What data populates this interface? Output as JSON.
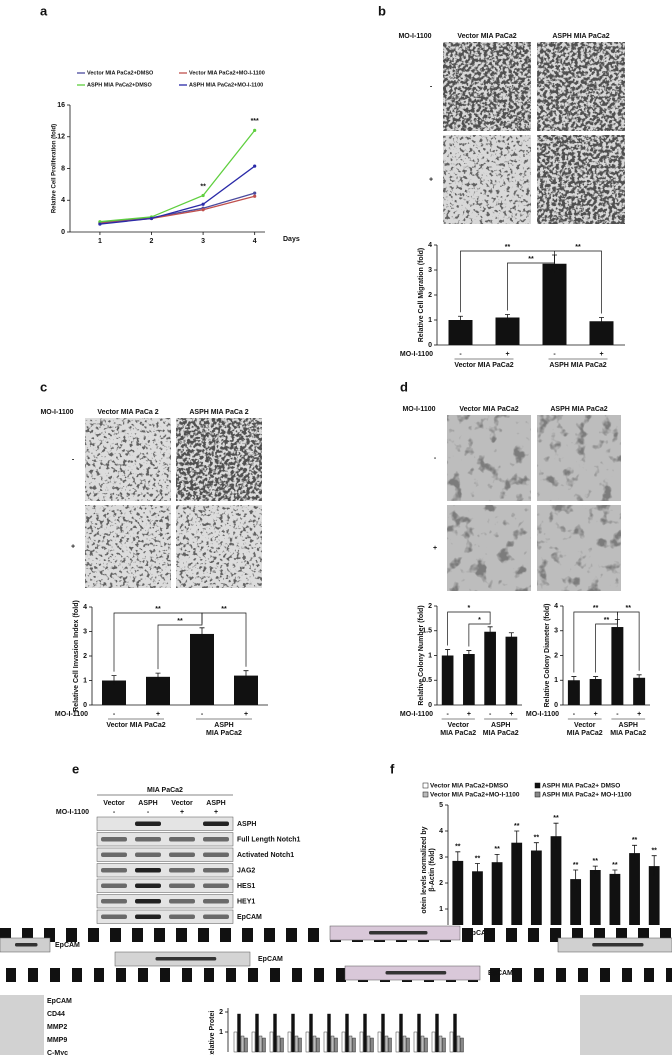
{
  "panel_labels": [
    "a",
    "b",
    "c",
    "d",
    "e",
    "f"
  ],
  "chart_data": [
    {
      "type": "line",
      "ylabel": "Relative Cell Proliferation (fold)",
      "xlabel": "Days",
      "x": [
        1,
        2,
        3,
        4
      ],
      "xlim": [
        0.42,
        4.2
      ],
      "xticks": [
        1,
        2,
        3,
        4
      ],
      "ylim": [
        0,
        16
      ],
      "yticks": [
        0,
        4,
        8,
        12,
        16
      ],
      "series": [
        {
          "name": "Vector MIA PaCa2+DMSO",
          "color": "#4b4b9e",
          "values": [
            1.2,
            1.8,
            3.0,
            4.9
          ]
        },
        {
          "name": "Vector MIA PaCa2+MO-I-1100",
          "color": "#c0504d",
          "values": [
            1.1,
            1.7,
            2.8,
            4.5
          ]
        },
        {
          "name": "ASPH MIA PaCa2+DMSO",
          "color": "#5fcf3f",
          "values": [
            1.3,
            1.9,
            4.6,
            12.8
          ]
        },
        {
          "name": "ASPH MIA PaCa2+MO-I-1100",
          "color": "#2a2aa8",
          "values": [
            1.0,
            1.7,
            3.5,
            8.3
          ]
        }
      ],
      "annotations": [
        "**",
        "***"
      ]
    },
    {
      "type": "bar",
      "ylabel": "Relative Cell Migration (fold)",
      "treatment_label": "MO-I-1100",
      "categories": [
        "-",
        "+",
        "-",
        "+"
      ],
      "groups": [
        [
          "Vector MIA PaCa2"
        ],
        [
          "ASPH MIA PaCa2"
        ]
      ],
      "values": [
        1.0,
        1.1,
        3.25,
        0.95
      ],
      "errors": [
        0.15,
        0.12,
        0.35,
        0.15
      ],
      "color": "#111111",
      "ylim": [
        0,
        4
      ],
      "yticks": [
        0,
        1,
        2,
        3,
        4
      ],
      "annotations": [
        "**",
        "**",
        "**"
      ]
    },
    {
      "type": "bar",
      "ylabel": "Relative Cell Invasion Index (fold)",
      "treatment_label": "MO-I-1100",
      "categories": [
        "-",
        "+",
        "-",
        "+"
      ],
      "groups": [
        [
          "Vector MIA PaCa2"
        ],
        [
          "ASPH",
          "MIA PaCa2"
        ]
      ],
      "values": [
        1.0,
        1.15,
        2.9,
        1.2
      ],
      "errors": [
        0.2,
        0.15,
        0.25,
        0.2
      ],
      "color": "#111111",
      "ylim": [
        0,
        4
      ],
      "yticks": [
        0,
        1,
        2,
        3,
        4
      ],
      "annotations": [
        "**",
        "**",
        "**"
      ]
    },
    {
      "type": "bar",
      "ylabel": "Relative Colony Number (fold)",
      "treatment_label": "MO-I-1100",
      "categories": [
        "-",
        "+",
        "-",
        "+"
      ],
      "groups": [
        [
          "Vector",
          "MIA PaCa2"
        ],
        [
          "ASPH",
          "MIA PaCa2"
        ]
      ],
      "values": [
        1.0,
        1.03,
        1.48,
        1.38
      ],
      "errors": [
        0.12,
        0.07,
        0.1,
        0.08
      ],
      "color": "#111111",
      "ylim": [
        0,
        2
      ],
      "yticks": [
        0,
        0.5,
        1,
        1.5,
        2
      ],
      "annotations": [
        "*",
        "*"
      ]
    },
    {
      "type": "bar",
      "ylabel": "Relative Colony Diameter (fold)",
      "treatment_label": "MO-I-1100",
      "categories": [
        "-",
        "+",
        "-",
        "+"
      ],
      "groups": [
        [
          "Vector",
          "MIA PaCa2"
        ],
        [
          "ASPH",
          "MIA PaCa2"
        ]
      ],
      "values": [
        1.0,
        1.05,
        3.15,
        1.1
      ],
      "errors": [
        0.15,
        0.1,
        0.3,
        0.12
      ],
      "color": "#111111",
      "ylim": [
        0,
        4
      ],
      "yticks": [
        0,
        1,
        2,
        3,
        4
      ],
      "annotations": [
        "**",
        "**",
        "**"
      ]
    },
    {
      "type": "bar",
      "ylabel": [
        "otein levels normalized by",
        "β-Actin (fold)"
      ],
      "legend": [
        {
          "name": "Vector MIA PaCa2+DMSO",
          "color": "#ffffff"
        },
        {
          "name": "ASPH MIA PaCa2+ DMSO",
          "color": "#111111"
        },
        {
          "name": "Vector MIA PaCa2+MO-I-1100",
          "color": "#bbbbbb"
        },
        {
          "name": "ASPH MIA PaCa2+ MO-I-1100",
          "color": "#888888"
        }
      ],
      "values": [
        2.85,
        2.45,
        2.8,
        3.55,
        3.25,
        3.8,
        2.15,
        2.5,
        2.35,
        3.15,
        2.65
      ],
      "errors": [
        0.35,
        0.3,
        0.3,
        0.45,
        0.3,
        0.5,
        0.35,
        0.15,
        0.15,
        0.3,
        0.4
      ],
      "color": "#111111",
      "ylim": [
        0,
        5
      ],
      "yticks": [
        0,
        1,
        2,
        3,
        4,
        5
      ],
      "annotations": [
        "**",
        "**",
        "**",
        "**",
        "**",
        "**",
        "**",
        "**",
        "**",
        "**",
        "**"
      ]
    }
  ],
  "images": {
    "b": {
      "treatment_label": "MO-I-1100",
      "headers": [
        "Vector MIA PaCa2",
        "ASPH MIA PaCa2"
      ],
      "rows": [
        "-",
        "+"
      ]
    },
    "c": {
      "treatment_label": "MO-I-1100",
      "headers": [
        "Vector MIA PaCa 2",
        "ASPH MIA PaCa 2"
      ],
      "rows": [
        "-",
        "+"
      ]
    },
    "d": {
      "treatment_label": "MO-I-1100",
      "headers": [
        "Vector MIA PaCa2",
        "ASPH MIA PaCa2"
      ],
      "rows": [
        "-",
        "+"
      ]
    }
  },
  "blot": {
    "group_label": "MIA PaCa2",
    "lanes": [
      "Vector",
      "ASPH",
      "Vector",
      "ASPH"
    ],
    "treatment_label": "MO-I-1100",
    "treatment": [
      "-",
      "-",
      "+",
      "+"
    ],
    "rows": [
      "ASPH",
      "Full Length Notch1",
      "Activated Notch1",
      "JAG2",
      "HES1",
      "HEY1",
      "EpCAM"
    ]
  },
  "fragments": {
    "overlays": [
      "EpCAM",
      "EpCAM",
      "EpCAM",
      "EpCAM"
    ],
    "left_labels": [
      "EpCAM",
      "CD44",
      "MMP2",
      "MMP9",
      "C-Myc"
    ],
    "lower_ylabel": "Relative Protei",
    "lower_yticks": [
      1,
      2
    ]
  }
}
